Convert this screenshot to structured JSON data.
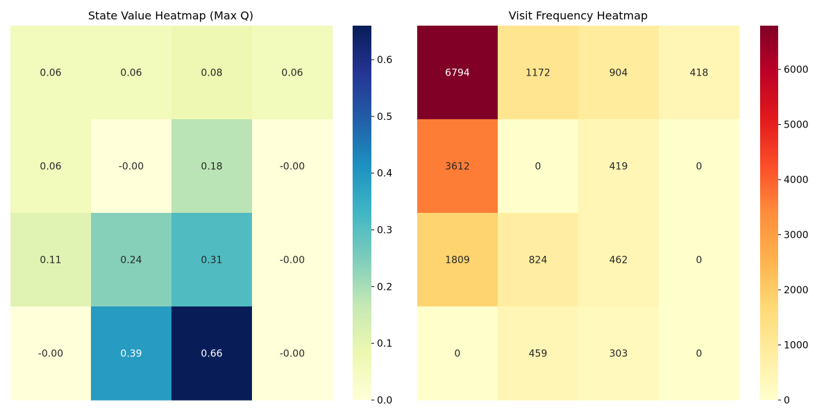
{
  "chart_data": [
    {
      "type": "heatmap",
      "title": "State Value Heatmap (Max Q)",
      "colormap": "YlGnBu",
      "values": [
        [
          0.06,
          0.06,
          0.08,
          0.06
        ],
        [
          0.06,
          -0.0,
          0.18,
          -0.0
        ],
        [
          0.11,
          0.24,
          0.31,
          -0.0
        ],
        [
          -0.0,
          0.39,
          0.66,
          -0.0
        ]
      ],
      "labels": [
        [
          "0.06",
          "0.06",
          "0.08",
          "0.06"
        ],
        [
          "0.06",
          "-0.00",
          "0.18",
          "-0.00"
        ],
        [
          "0.11",
          "0.24",
          "0.31",
          "-0.00"
        ],
        [
          "-0.00",
          "0.39",
          "0.66",
          "-0.00"
        ]
      ],
      "vmin": 0.0,
      "vmax": 0.66,
      "colorbar_ticks": [
        0.0,
        0.1,
        0.2,
        0.3,
        0.4,
        0.5,
        0.6
      ],
      "colorbar_tick_labels": [
        "0.0",
        "0.1",
        "0.2",
        "0.3",
        "0.4",
        "0.5",
        "0.6"
      ]
    },
    {
      "type": "heatmap",
      "title": "Visit Frequency Heatmap",
      "colormap": "YlOrRd",
      "values": [
        [
          6794,
          1172,
          904,
          418
        ],
        [
          3612,
          0,
          419,
          0
        ],
        [
          1809,
          824,
          462,
          0
        ],
        [
          0,
          459,
          303,
          0
        ]
      ],
      "labels": [
        [
          "6794",
          "1172",
          "904",
          "418"
        ],
        [
          "3612",
          "0",
          "419",
          "0"
        ],
        [
          "1809",
          "824",
          "462",
          "0"
        ],
        [
          "0",
          "459",
          "303",
          "0"
        ]
      ],
      "vmin": 0,
      "vmax": 6794,
      "colorbar_ticks": [
        0,
        1000,
        2000,
        3000,
        4000,
        5000,
        6000
      ],
      "colorbar_tick_labels": [
        "0",
        "1000",
        "2000",
        "3000",
        "4000",
        "5000",
        "6000"
      ]
    }
  ]
}
